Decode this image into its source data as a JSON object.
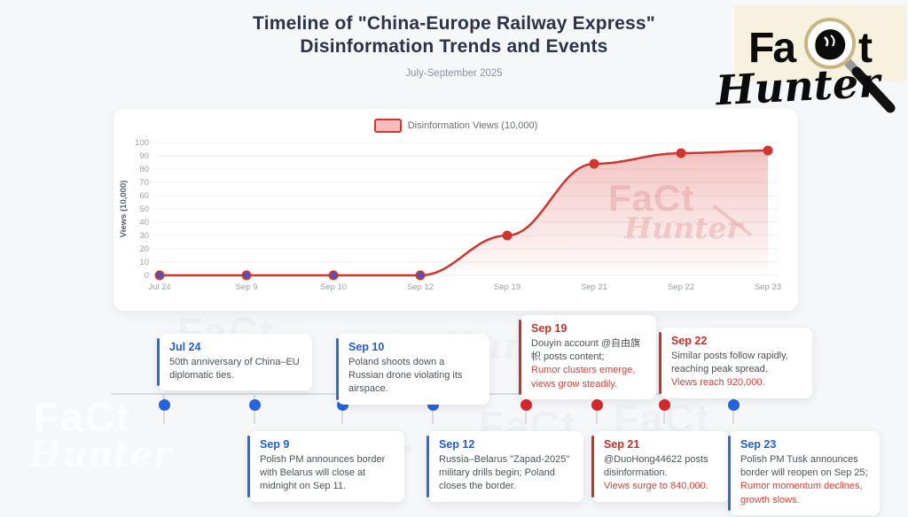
{
  "header": {
    "title_line1": "Timeline of \"China-Europe Railway Express\"",
    "title_line2": "Disinformation Trends and Events",
    "subtitle": "July-September 2025"
  },
  "logo": {
    "fact_fa": "Fa",
    "fact_t": "t",
    "hunter": "Hunter",
    "background_color": "#f7f1df",
    "glass_ring_color": "#c9b483"
  },
  "chart_data": {
    "type": "area",
    "legend": "Disinformation Views (10,000)",
    "legend_position": "top-center",
    "ylabel": "Views (10,000)",
    "categories": [
      "Jul 24",
      "Sep 9",
      "Sep 10",
      "Sep 12",
      "Sep 19",
      "Sep 21",
      "Sep 22",
      "Sep 23"
    ],
    "values": [
      0,
      0,
      0,
      0,
      30,
      84,
      92,
      94
    ],
    "ylim": [
      0,
      100
    ],
    "ytick_step": 10,
    "grid": true,
    "line_color": "#d2342e",
    "area_top_color": "rgba(214,60,55,0.30)",
    "area_bottom_color": "rgba(214,60,55,0.02)",
    "marker_fill": "#d2342e",
    "zero_marker_fill": "#4355c8",
    "swatch_fill": "#f5bcbc",
    "swatch_border": "#d2342e"
  },
  "timeline": {
    "events": [
      {
        "date": "Jul 24",
        "text": "50th anniversary of China–EU diplomatic ties.",
        "highlight": "",
        "color": "blue",
        "side": "top"
      },
      {
        "date": "Sep 9",
        "text": "Polish PM announces border with Belarus will close at midnight on Sep 11.",
        "highlight": "",
        "color": "blue",
        "side": "bottom"
      },
      {
        "date": "Sep 10",
        "text": "Poland shoots down a Russian drone violating its airspace.",
        "highlight": "",
        "color": "blue",
        "side": "top"
      },
      {
        "date": "Sep 12",
        "text": "Russia–Belarus \"Zapad-2025\" military drills begin; Poland closes the border.",
        "highlight": "",
        "color": "blue",
        "side": "bottom"
      },
      {
        "date": "Sep 19",
        "text": "Douyin account @自由旗帜 posts content;",
        "highlight": "Rumor clusters emerge, views grow steadily.",
        "color": "red",
        "side": "top"
      },
      {
        "date": "Sep 21",
        "text": "@DuoHong44622 posts disinformation.",
        "highlight": "Views surge to 840,000.",
        "color": "red",
        "side": "bottom"
      },
      {
        "date": "Sep 22",
        "text": "Similar posts follow rapidly, reaching peak spread.",
        "highlight": "Views reach 920,000.",
        "color": "red",
        "side": "top"
      },
      {
        "date": "Sep 23",
        "text": "Polish PM Tusk announces border will reopen on Sep 25;",
        "highlight": "Rumor momentum declines, growth slows.",
        "color": "blue",
        "side": "bottom"
      }
    ],
    "dot_colors": {
      "blue": "#2563e0",
      "red": "#d8282c"
    }
  },
  "watermark": {
    "fact": "FaCt",
    "hunter": "Hunter"
  }
}
